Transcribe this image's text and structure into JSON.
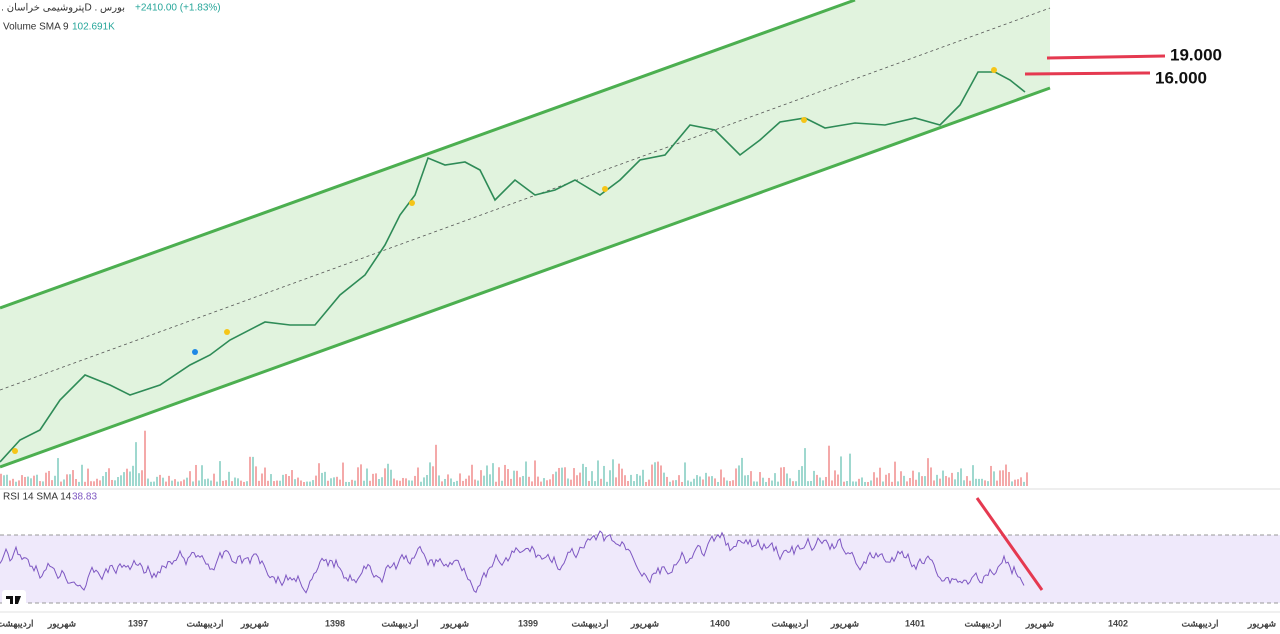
{
  "header": {
    "symbol": "پتروشیمی خراسان . 1D . بورس",
    "change": "+2410.00 (+1.83%)"
  },
  "volume": {
    "label": "Volume SMA 9",
    "value": "102.691K"
  },
  "annotations": [
    "19.000",
    "16.000"
  ],
  "rsi": {
    "label": "RSI 14 SMA 14",
    "value": "38.83"
  },
  "x_axis": [
    "اردیبهشت",
    "شهریور",
    "1397",
    "اردیبهشت",
    "شهریور",
    "1398",
    "اردیبهشت",
    "شهریور",
    "1399",
    "اردیبهشت",
    "شهریور",
    "1400",
    "اردیبهشت",
    "شهریور",
    "1401",
    "اردیبهشت",
    "شهریور",
    "1402",
    "اردیبهشت",
    "شهریور"
  ]
}
